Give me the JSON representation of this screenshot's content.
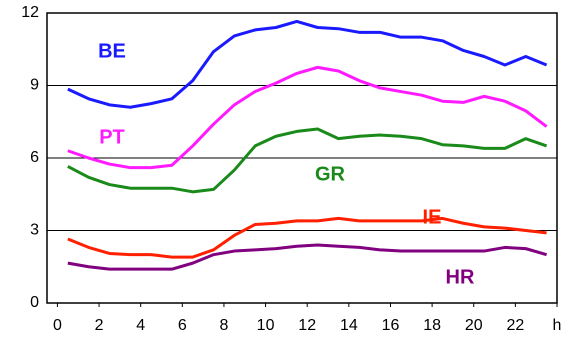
{
  "chart_data": {
    "type": "line",
    "x": [
      0.5,
      1.5,
      2.5,
      3.5,
      4.5,
      5.5,
      6.5,
      7.5,
      8.5,
      9.5,
      10.5,
      11.5,
      12.5,
      13.5,
      14.5,
      15.5,
      16.5,
      17.5,
      18.5,
      19.5,
      20.5,
      21.5,
      22.5,
      23.5
    ],
    "series": [
      {
        "name": "BE",
        "color": "#1a1aff",
        "values": [
          8.85,
          8.45,
          8.2,
          8.1,
          8.25,
          8.45,
          9.2,
          10.4,
          11.05,
          11.3,
          11.4,
          11.65,
          11.4,
          11.35,
          11.2,
          11.2,
          11.0,
          11.0,
          10.85,
          10.45,
          10.2,
          9.85,
          10.2,
          9.85
        ]
      },
      {
        "name": "PT",
        "color": "#ff1aff",
        "values": [
          6.3,
          6.0,
          5.75,
          5.6,
          5.6,
          5.7,
          6.5,
          7.4,
          8.2,
          8.75,
          9.1,
          9.5,
          9.75,
          9.6,
          9.2,
          8.9,
          8.75,
          8.6,
          8.35,
          8.3,
          8.55,
          8.35,
          7.95,
          7.3
        ]
      },
      {
        "name": "GR",
        "color": "#1a8a1a",
        "values": [
          5.65,
          5.2,
          4.9,
          4.75,
          4.75,
          4.75,
          4.6,
          4.7,
          5.5,
          6.5,
          6.9,
          7.1,
          7.2,
          6.8,
          6.9,
          6.95,
          6.9,
          6.8,
          6.55,
          6.5,
          6.4,
          6.4,
          6.8,
          6.5
        ]
      },
      {
        "name": "IE",
        "color": "#ff2000",
        "values": [
          2.65,
          2.3,
          2.05,
          2.0,
          2.0,
          1.9,
          1.9,
          2.2,
          2.8,
          3.25,
          3.3,
          3.4,
          3.4,
          3.5,
          3.4,
          3.4,
          3.4,
          3.4,
          3.5,
          3.3,
          3.15,
          3.1,
          3.0,
          2.9
        ]
      },
      {
        "name": "HR",
        "color": "#800080",
        "values": [
          1.65,
          1.5,
          1.4,
          1.4,
          1.4,
          1.4,
          1.65,
          2.0,
          2.15,
          2.2,
          2.25,
          2.35,
          2.4,
          2.35,
          2.3,
          2.2,
          2.15,
          2.15,
          2.15,
          2.15,
          2.15,
          2.3,
          2.25,
          2.0
        ]
      }
    ],
    "xlim": [
      -0.5,
      24
    ],
    "ylim": [
      0,
      12
    ],
    "xticks": [
      0,
      2,
      4,
      6,
      8,
      10,
      12,
      14,
      16,
      18,
      20,
      22,
      {
        "value": 24,
        "label": "h"
      }
    ],
    "yticks": [
      0,
      3,
      6,
      9,
      12
    ],
    "grid": true
  }
}
